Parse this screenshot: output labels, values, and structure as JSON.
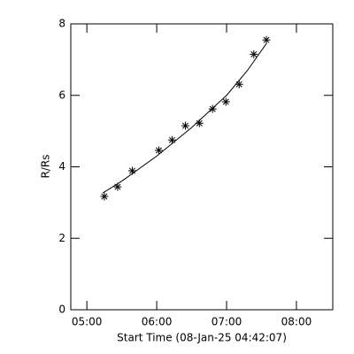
{
  "chart_data": {
    "type": "scatter",
    "xlabel": "Start Time (08-Jan-25 04:42:07)",
    "ylabel": "R/Rs",
    "x": [
      5.25,
      5.44,
      5.65,
      6.03,
      6.22,
      6.41,
      6.61,
      6.8,
      6.99,
      7.18,
      7.39,
      7.57
    ],
    "values": [
      3.17,
      3.44,
      3.89,
      4.46,
      4.75,
      5.15,
      5.22,
      5.62,
      5.82,
      6.31,
      7.15,
      7.55
    ],
    "fit_x": [
      5.23,
      5.5,
      6.0,
      6.5,
      7.0,
      7.3,
      7.57
    ],
    "fit_values": [
      3.27,
      3.6,
      4.3,
      5.1,
      6.0,
      6.7,
      7.45
    ],
    "color": "#000000",
    "xlim": [
      4.77,
      8.52
    ],
    "ylim": [
      0,
      8
    ],
    "xticks": [
      {
        "value": 5,
        "label": "05:00"
      },
      {
        "value": 6,
        "label": "06:00"
      },
      {
        "value": 7,
        "label": "07:00"
      },
      {
        "value": 8,
        "label": "08:00"
      }
    ],
    "yticks": [
      0,
      2,
      4,
      6,
      8
    ]
  }
}
